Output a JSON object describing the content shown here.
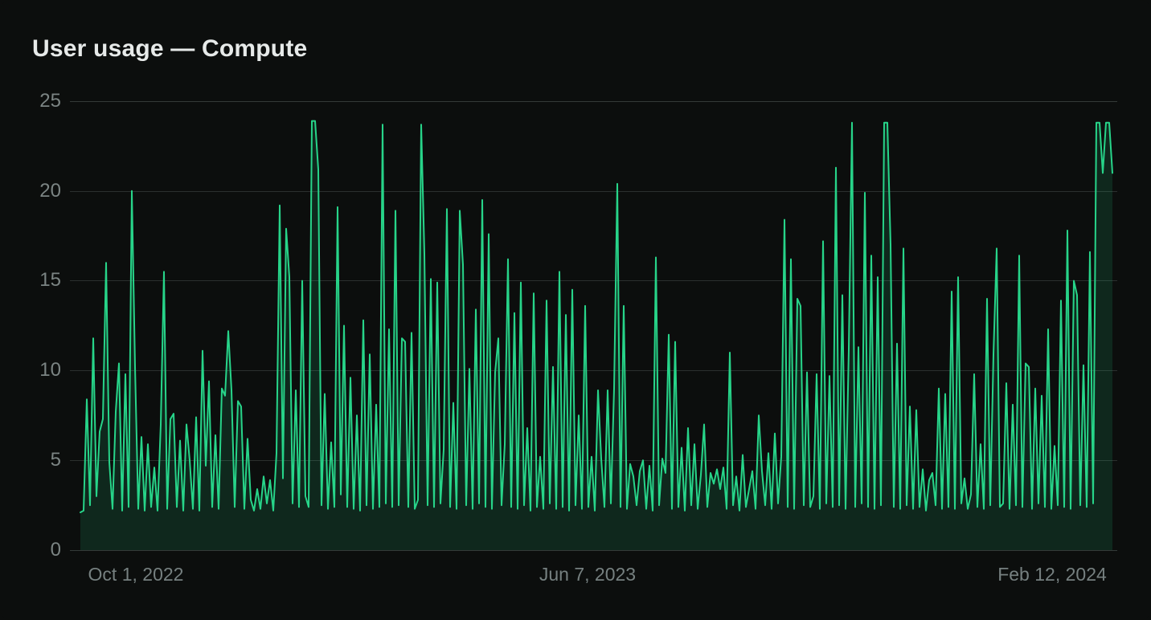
{
  "chart": {
    "title": "User usage — Compute"
  },
  "chart_data": {
    "type": "area",
    "title": "User usage — Compute",
    "series_name": "Compute usage",
    "x_tick_labels": [
      "Oct 1, 2022",
      "Jun 7, 2023",
      "Feb 12, 2024"
    ],
    "y_ticks": [
      25,
      20,
      15,
      10,
      5,
      0
    ],
    "ylim": [
      0,
      25
    ],
    "grid": "horizontal",
    "legend": "none",
    "line_color": "#27d489",
    "fill_color": "rgba(38,213,137,0.13)",
    "background_color": "#0c0e0d",
    "values": [
      2.1,
      2.2,
      8.4,
      2.5,
      11.8,
      3.0,
      6.6,
      7.3,
      16.0,
      4.9,
      2.3,
      7.7,
      10.4,
      2.2,
      9.8,
      2.4,
      20.0,
      10.2,
      2.3,
      6.3,
      2.2,
      5.9,
      2.4,
      4.6,
      2.2,
      7.0,
      15.5,
      2.3,
      7.3,
      7.6,
      2.4,
      6.1,
      2.2,
      7.0,
      5.0,
      2.3,
      7.4,
      2.2,
      11.1,
      4.7,
      9.4,
      2.4,
      6.4,
      2.3,
      9.0,
      8.6,
      12.2,
      8.9,
      2.4,
      8.3,
      8.0,
      2.3,
      6.2,
      2.8,
      2.2,
      3.4,
      2.3,
      4.1,
      2.6,
      3.9,
      2.2,
      5.4,
      19.2,
      4.0,
      17.9,
      15.2,
      2.6,
      8.9,
      2.4,
      15.0,
      3.0,
      2.4,
      23.9,
      23.9,
      21.2,
      2.5,
      8.7,
      2.3,
      6.0,
      2.4,
      19.1,
      3.1,
      12.5,
      2.4,
      9.6,
      2.3,
      7.5,
      2.2,
      12.8,
      2.5,
      10.9,
      2.3,
      8.1,
      2.4,
      23.7,
      2.6,
      12.3,
      2.4,
      18.9,
      2.5,
      11.8,
      11.6,
      2.4,
      12.1,
      2.3,
      2.8,
      23.7,
      16.5,
      2.5,
      15.1,
      2.4,
      14.9,
      2.6,
      5.6,
      19.0,
      2.4,
      8.2,
      2.3,
      18.9,
      15.9,
      2.5,
      10.1,
      2.3,
      13.4,
      2.6,
      19.5,
      2.4,
      17.6,
      2.3,
      9.9,
      11.8,
      2.5,
      5.9,
      16.2,
      2.4,
      13.2,
      2.3,
      14.9,
      2.5,
      6.8,
      2.2,
      14.3,
      2.4,
      5.2,
      2.3,
      13.9,
      2.6,
      10.2,
      2.3,
      15.5,
      2.4,
      13.1,
      2.2,
      14.5,
      2.5,
      7.5,
      2.3,
      13.6,
      2.4,
      5.2,
      2.2,
      8.9,
      5.1,
      2.4,
      8.9,
      2.6,
      9.0,
      20.4,
      2.4,
      13.6,
      2.3,
      4.8,
      4.1,
      2.5,
      4.4,
      5.0,
      2.3,
      4.7,
      2.2,
      16.3,
      2.5,
      5.1,
      4.3,
      12.0,
      2.3,
      11.6,
      2.4,
      5.7,
      2.2,
      6.8,
      2.5,
      5.9,
      2.3,
      4.2,
      7.0,
      2.4,
      4.3,
      3.7,
      4.5,
      3.4,
      4.6,
      2.3,
      11.0,
      2.5,
      4.1,
      2.2,
      5.3,
      2.4,
      3.4,
      4.4,
      2.3,
      7.5,
      4.4,
      2.5,
      5.4,
      2.3,
      6.5,
      2.6,
      5.2,
      18.4,
      2.4,
      16.2,
      2.3,
      14.0,
      13.6,
      2.5,
      9.9,
      2.4,
      3.0,
      9.8,
      2.3,
      17.2,
      2.6,
      9.7,
      2.4,
      21.3,
      2.5,
      14.2,
      2.3,
      11.2,
      23.8,
      2.4,
      11.3,
      2.6,
      19.9,
      2.4,
      16.4,
      2.3,
      15.2,
      2.5,
      23.8,
      23.8,
      17.0,
      2.4,
      11.5,
      2.3,
      16.8,
      2.5,
      8.0,
      2.3,
      7.8,
      2.4,
      4.5,
      2.2,
      3.9,
      4.3,
      2.5,
      9.0,
      2.3,
      8.7,
      2.4,
      14.4,
      2.3,
      15.2,
      2.6,
      4.0,
      2.3,
      3.1,
      9.8,
      2.4,
      5.9,
      2.3,
      14.0,
      2.5,
      10.9,
      16.8,
      2.4,
      2.6,
      9.3,
      2.3,
      8.1,
      2.5,
      16.4,
      2.4,
      10.4,
      10.2,
      2.3,
      9.0,
      2.6,
      8.6,
      2.4,
      12.3,
      2.3,
      5.8,
      2.5,
      13.9,
      2.4,
      17.8,
      2.3,
      15.0,
      14.2,
      2.5,
      10.3,
      2.4,
      16.6,
      2.6,
      23.8,
      23.8,
      21.0,
      23.8,
      23.8,
      21.0
    ]
  }
}
